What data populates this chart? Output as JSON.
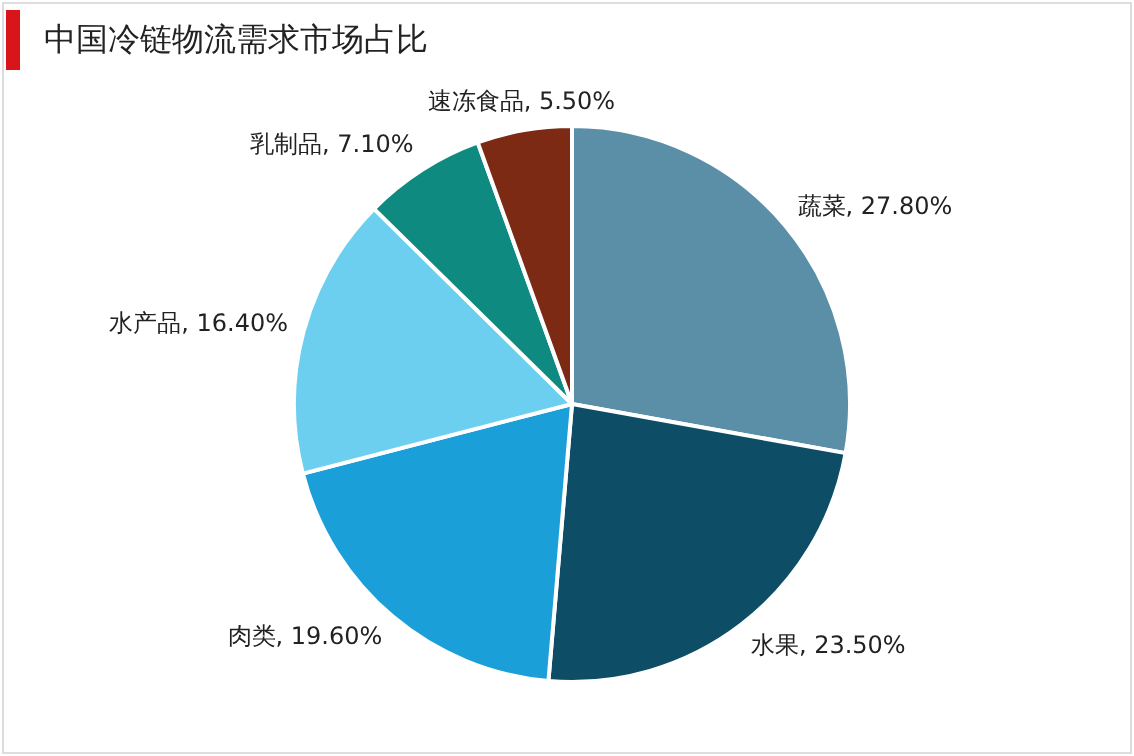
{
  "chart_data": {
    "type": "pie",
    "title": "中国冷链物流需求市场占比",
    "categories": [
      "蔬菜",
      "水果",
      "肉类",
      "水产品",
      "乳制品",
      "速冻食品"
    ],
    "values": [
      27.8,
      23.5,
      19.6,
      16.4,
      7.1,
      5.5
    ],
    "value_labels": [
      "27.80%",
      "23.50%",
      "19.60%",
      "16.40%",
      "7.10%",
      "5.50%"
    ],
    "colors": [
      "#5b8fa8",
      "#0d4d66",
      "#1a9fd9",
      "#6dcff0",
      "#0e8a80",
      "#7d2a14"
    ],
    "legend": false
  }
}
